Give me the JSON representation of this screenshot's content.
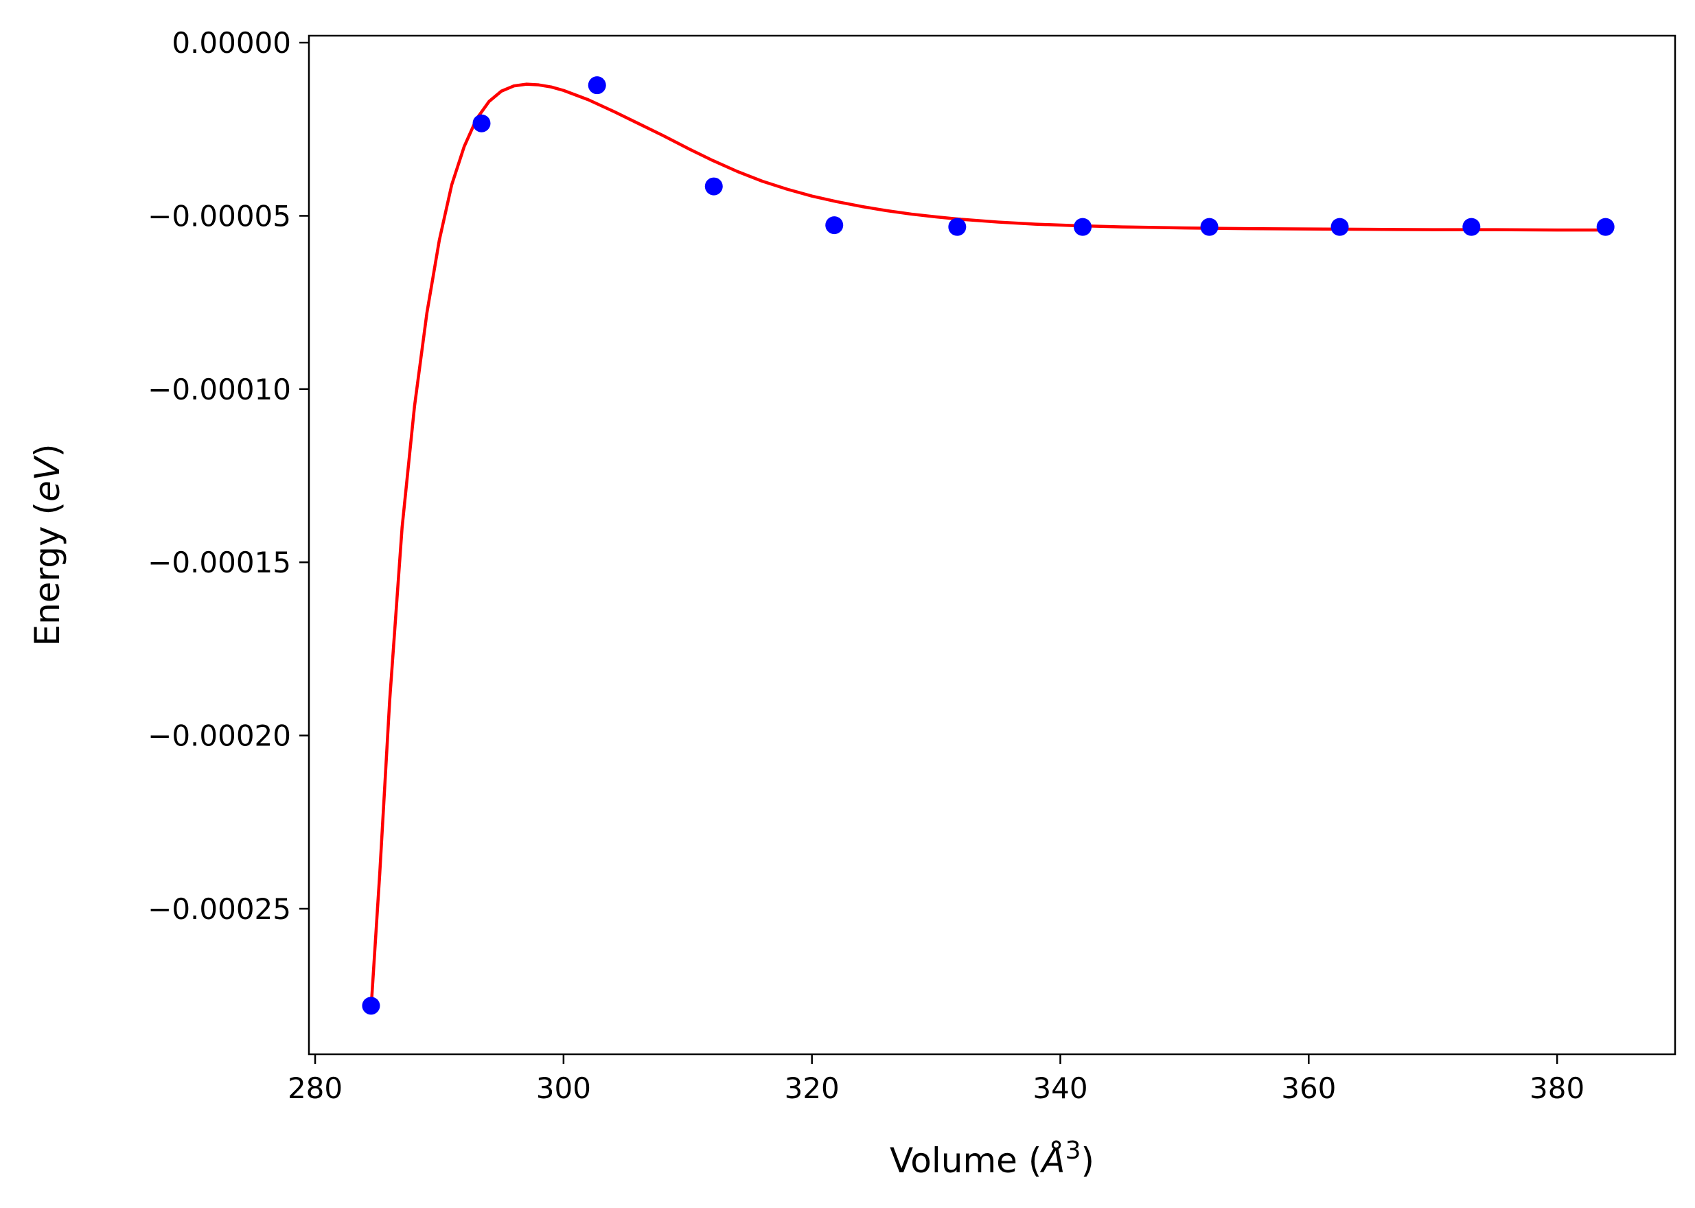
{
  "chart_data": {
    "type": "scatter",
    "title": "",
    "xlabel": "Volume ($\\AA^3$)",
    "xlabel_parts": {
      "prefix": "Volume (",
      "symbol": "Å",
      "superscript": "3",
      "suffix": ")"
    },
    "ylabel": "Energy ($eV$)",
    "ylabel_parts": {
      "prefix": "Energy (",
      "italic": "eV",
      "suffix": ")"
    },
    "xlim": [
      279.5,
      389.5
    ],
    "ylim": [
      -0.000292,
      2e-06
    ],
    "xticks": [
      280,
      300,
      320,
      340,
      360,
      380
    ],
    "xtick_labels": [
      "280",
      "300",
      "320",
      "340",
      "360",
      "380"
    ],
    "yticks": [
      0,
      -5e-05,
      -0.0001,
      -0.00015,
      -0.0002,
      -0.00025
    ],
    "ytick_labels": [
      "0.00000",
      "−0.00005",
      "−0.00010",
      "−0.00015",
      "−0.00020",
      "−0.00025"
    ],
    "grid": false,
    "legend": null,
    "series": [
      {
        "kind": "points",
        "color": "#0000ff",
        "x": [
          284.5,
          293.4,
          302.7,
          312.1,
          321.8,
          331.7,
          341.8,
          352.0,
          362.5,
          373.1,
          383.9
        ],
        "y": [
          -0.000278,
          -2.33e-05,
          -1.23e-05,
          -4.15e-05,
          -5.27e-05,
          -5.32e-05,
          -5.32e-05,
          -5.32e-05,
          -5.32e-05,
          -5.32e-05,
          -5.32e-05
        ]
      },
      {
        "kind": "line",
        "color": "#ff0000",
        "x": [
          284.5,
          285.2,
          286.0,
          287.0,
          288.0,
          289.0,
          290.0,
          291.0,
          292.0,
          293.0,
          294.0,
          295.0,
          296.0,
          297.0,
          298.0,
          299.0,
          300.0,
          302.0,
          304.0,
          306.0,
          308.0,
          310.0,
          312.0,
          314.0,
          316.0,
          318.0,
          320.0,
          322.0,
          324.0,
          326.0,
          328.0,
          330.0,
          332.0,
          335.0,
          338.0,
          341.0,
          345.0,
          350.0,
          355.0,
          360.0,
          365.0,
          370.0,
          375.0,
          380.0,
          384.0
        ],
        "y": [
          -0.000279,
          -0.00024,
          -0.00019,
          -0.00014,
          -0.000105,
          -7.8e-05,
          -5.7e-05,
          -4.1e-05,
          -3e-05,
          -2.2e-05,
          -1.7e-05,
          -1.4e-05,
          -1.25e-05,
          -1.2e-05,
          -1.22e-05,
          -1.28e-05,
          -1.38e-05,
          -1.65e-05,
          -1.98e-05,
          -2.33e-05,
          -2.68e-05,
          -3.05e-05,
          -3.4e-05,
          -3.72e-05,
          -4e-05,
          -4.23e-05,
          -4.43e-05,
          -4.59e-05,
          -4.73e-05,
          -4.85e-05,
          -4.95e-05,
          -5.03e-05,
          -5.1e-05,
          -5.18e-05,
          -5.24e-05,
          -5.28e-05,
          -5.32e-05,
          -5.35e-05,
          -5.37e-05,
          -5.38e-05,
          -5.39e-05,
          -5.4e-05,
          -5.4e-05,
          -5.41e-05,
          -5.41e-05
        ]
      }
    ]
  }
}
